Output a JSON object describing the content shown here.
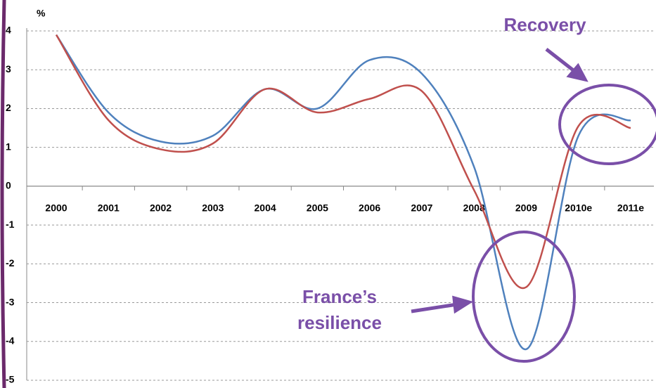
{
  "chart_data": {
    "type": "line",
    "unit_label": "%",
    "categories": [
      "2000",
      "2001",
      "2002",
      "2003",
      "2004",
      "2005",
      "2006",
      "2007",
      "2008",
      "2009",
      "2010e",
      "2011e"
    ],
    "series": [
      {
        "color": "#4f81bd",
        "values": [
          3.9,
          1.9,
          1.15,
          1.3,
          2.5,
          2.0,
          3.25,
          2.9,
          0.5,
          -4.2,
          1.3,
          1.7
        ]
      },
      {
        "color": "#c0504d",
        "values": [
          3.9,
          1.7,
          0.95,
          1.1,
          2.5,
          1.9,
          2.25,
          2.45,
          -0.1,
          -2.6,
          1.55,
          1.5
        ]
      }
    ],
    "ylim": [
      -5,
      4
    ],
    "yticks": [
      -5,
      -4,
      -3,
      -2,
      -1,
      0,
      1,
      2,
      3,
      4
    ],
    "grid": true,
    "annotations": [
      "Recovery",
      "France’s",
      "resilience"
    ]
  }
}
